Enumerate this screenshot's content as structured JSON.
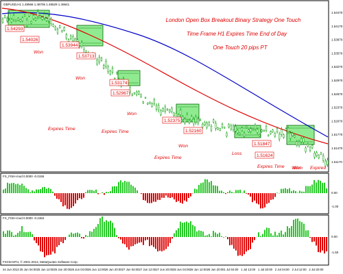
{
  "symbol_header": "GBPUSD,H1  1.48566 1.48706 1.48529 1.48641",
  "title_lines": [
    "London Open Box Breakout Binary Strategy One Touch",
    "Time Frame H1 Expires Time End of Day",
    "One Touch 20 pips PT"
  ],
  "colors": {
    "accent_text": "#e00000",
    "candle": "#009a00",
    "box_fill": "#7de87d",
    "ma_fast": "#e00000",
    "ma_slow": "#0000c8",
    "hist_up": "#26c826",
    "hist_down": "#e00000"
  },
  "price_axis": [
    "1.54470",
    "1.54170",
    "1.53870",
    "1.53570",
    "1.53270",
    "1.52970",
    "1.52670",
    "1.52370",
    "1.52070",
    "1.51770",
    "1.51470",
    "1.51170"
  ],
  "price_tags": [
    "1.54293",
    "1.54026",
    "1.53944",
    "1.53713",
    "1.53174",
    "1.52967",
    "1.52375",
    "1.52160",
    "1.51847",
    "1.51624"
  ],
  "chart_notes": [
    "Won",
    "Won",
    "Won",
    "Won",
    "Won",
    "Expires Time",
    "Expires Time",
    "Expires Time",
    "Loss",
    "Expires Time",
    "Won",
    "Expires"
  ],
  "indicator1": {
    "label": "FX_FISH-mod 0.0000 -0.0155",
    "axis": [
      "0.00",
      "-1.00"
    ]
  },
  "indicator2": {
    "label": "FX_FISH-mod 0.0000 -0.2484",
    "axis": [
      "0.00",
      "-1.50"
    ]
  },
  "copyright": "FXCM MT4, © 2001-2013, MetaQuotes Software Corp.",
  "time_axis": [
    "24 Jun 2013",
    "25 Jun 04:00",
    "25 Jun 12:00",
    "25 Jun 20:00",
    "26 Jun 04:00",
    "26 Jun 12:00",
    "26 Jun 20:00",
    "27 Jun 04:00",
    "27 Jun 12:00",
    "27 Jun 20:00",
    "28 Jun 04:00",
    "28 Jun 12:00",
    "28 Jun 20:00",
    "1 Jul 04:00",
    "1 Jul 12:00",
    "1 Jul 20:00",
    "2 Jul 04:00",
    "2 Jul 12:00",
    "2 Jul 20:00"
  ]
}
